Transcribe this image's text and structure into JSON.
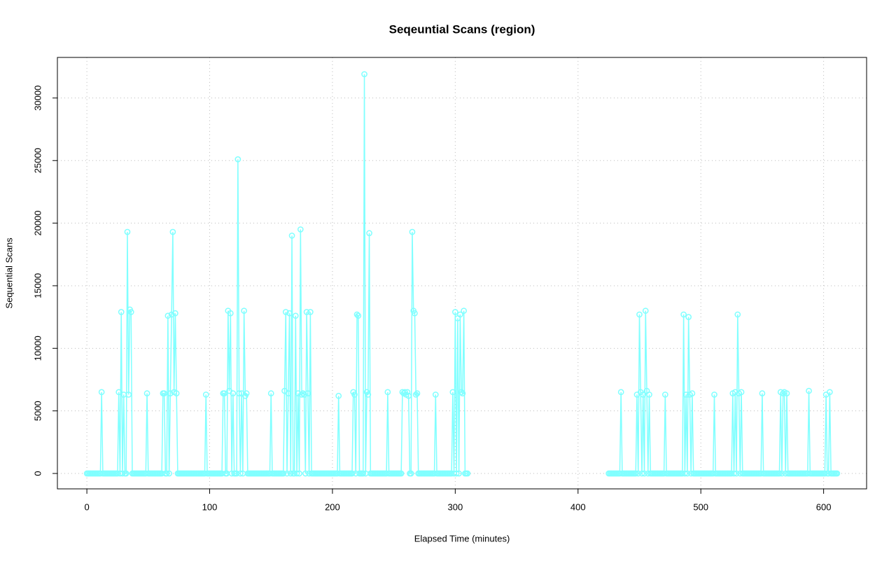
{
  "chart_data": {
    "type": "line",
    "markers": true,
    "title": "Seqeuntial Scans (region)",
    "x_label": "Elapsed Time (minutes)",
    "y_label": "Sequential Scans",
    "color": "#80ffff",
    "grid": true,
    "xlim": [
      -24,
      635
    ],
    "ylim": [
      -1230,
      33240
    ],
    "xticks": [
      0,
      100,
      200,
      300,
      400,
      500,
      600
    ],
    "yticks": [
      0,
      5000,
      10000,
      15000,
      20000,
      25000,
      30000
    ],
    "x": [
      0,
      1,
      2,
      3,
      4,
      5,
      6,
      7,
      8,
      9,
      10,
      11,
      12,
      13,
      14,
      15,
      16,
      17,
      18,
      19,
      20,
      21,
      22,
      23,
      24,
      25,
      26,
      27,
      28,
      29,
      30,
      31,
      32,
      33,
      34,
      35,
      36,
      37,
      38,
      39,
      40,
      41,
      42,
      43,
      44,
      45,
      46,
      47,
      48,
      49,
      50,
      51,
      52,
      53,
      54,
      55,
      56,
      57,
      58,
      59,
      60,
      61,
      62,
      63,
      64,
      65,
      66,
      67,
      68,
      69,
      70,
      71,
      72,
      73,
      74,
      75,
      76,
      77,
      78,
      79,
      80,
      81,
      82,
      83,
      84,
      85,
      86,
      87,
      88,
      89,
      90,
      91,
      92,
      93,
      94,
      95,
      96,
      97,
      98,
      99,
      100,
      101,
      102,
      103,
      104,
      105,
      106,
      107,
      108,
      109,
      110,
      111,
      112,
      113,
      114,
      115,
      116,
      117,
      118,
      119,
      120,
      121,
      122,
      123,
      124,
      125,
      126,
      127,
      128,
      129,
      130,
      131,
      132,
      133,
      134,
      135,
      136,
      137,
      138,
      139,
      140,
      141,
      142,
      143,
      144,
      145,
      146,
      147,
      148,
      149,
      150,
      151,
      152,
      153,
      154,
      155,
      156,
      157,
      158,
      159,
      160,
      161,
      162,
      163,
      164,
      165,
      166,
      167,
      168,
      169,
      170,
      171,
      172,
      173,
      174,
      175,
      176,
      177,
      178,
      179,
      180,
      181,
      182,
      183,
      184,
      185,
      186,
      187,
      188,
      189,
      190,
      191,
      192,
      193,
      194,
      195,
      196,
      197,
      198,
      199,
      200,
      201,
      202,
      203,
      204,
      205,
      206,
      207,
      208,
      209,
      210,
      211,
      212,
      213,
      214,
      215,
      216,
      217,
      218,
      219,
      220,
      221,
      222,
      223,
      224,
      225,
      226,
      227,
      228,
      229,
      230,
      231,
      232,
      233,
      234,
      235,
      236,
      237,
      238,
      239,
      240,
      241,
      242,
      243,
      244,
      245,
      246,
      247,
      248,
      249,
      250,
      251,
      252,
      253,
      254,
      255,
      256,
      257,
      258,
      259,
      260,
      261,
      262,
      263,
      264,
      265,
      266,
      267,
      268,
      269,
      270,
      271,
      272,
      273,
      274,
      275,
      276,
      277,
      278,
      279,
      280,
      281,
      282,
      283,
      284,
      285,
      286,
      287,
      288,
      289,
      290,
      291,
      292,
      293,
      294,
      295,
      296,
      297,
      298,
      299,
      300,
      301,
      302,
      303,
      304,
      305,
      306,
      307,
      308,
      309,
      310,
      368,
      425,
      426,
      427,
      428,
      429,
      430,
      431,
      432,
      433,
      434,
      435,
      436,
      437,
      438,
      439,
      440,
      441,
      442,
      443,
      444,
      445,
      446,
      447,
      448,
      449,
      450,
      451,
      452,
      453,
      454,
      455,
      456,
      457,
      458,
      459,
      460,
      461,
      462,
      463,
      464,
      465,
      466,
      467,
      468,
      469,
      470,
      471,
      472,
      473,
      474,
      475,
      476,
      477,
      478,
      479,
      480,
      481,
      482,
      483,
      484,
      485,
      486,
      487,
      488,
      489,
      490,
      491,
      492,
      493,
      494,
      495,
      496,
      497,
      498,
      499,
      500,
      501,
      502,
      503,
      504,
      505,
      506,
      507,
      508,
      509,
      510,
      511,
      512,
      513,
      514,
      515,
      516,
      517,
      518,
      519,
      520,
      521,
      522,
      523,
      524,
      525,
      526,
      527,
      528,
      529,
      530,
      531,
      532,
      533,
      534,
      535,
      536,
      537,
      538,
      539,
      540,
      541,
      542,
      543,
      544,
      545,
      546,
      547,
      548,
      549,
      550,
      551,
      552,
      553,
      554,
      555,
      556,
      557,
      558,
      559,
      560,
      561,
      562,
      563,
      564,
      565,
      566,
      567,
      568,
      569,
      570,
      571,
      572,
      573,
      574,
      575,
      576,
      577,
      578,
      579,
      580,
      581,
      582,
      583,
      584,
      585,
      586,
      587,
      588,
      589,
      590,
      591,
      592,
      593,
      594,
      595,
      596,
      597,
      598,
      599,
      600,
      601,
      602,
      603,
      604,
      605,
      606,
      607,
      608,
      609,
      610,
      611
    ],
    "values": [
      0,
      0,
      0,
      0,
      0,
      0,
      0,
      0,
      0,
      0,
      0,
      0,
      6500,
      0,
      0,
      0,
      0,
      0,
      0,
      0,
      0,
      0,
      0,
      0,
      0,
      0,
      6500,
      0,
      12900,
      0,
      6300,
      0,
      0,
      19300,
      6300,
      13100,
      12900,
      0,
      0,
      0,
      0,
      0,
      0,
      0,
      0,
      0,
      0,
      0,
      0,
      6400,
      0,
      0,
      0,
      0,
      0,
      0,
      0,
      0,
      0,
      0,
      0,
      0,
      6400,
      6400,
      0,
      0,
      12600,
      0,
      6400,
      12700,
      19300,
      6500,
      12800,
      6400,
      0,
      0,
      0,
      0,
      0,
      0,
      0,
      0,
      0,
      0,
      0,
      0,
      0,
      0,
      0,
      0,
      0,
      0,
      0,
      0,
      0,
      0,
      0,
      6300,
      0,
      0,
      0,
      0,
      0,
      0,
      0,
      0,
      0,
      0,
      0,
      0,
      0,
      6400,
      6400,
      0,
      0,
      13000,
      6600,
      12800,
      0,
      6400,
      0,
      0,
      0,
      25100,
      6400,
      0,
      6400,
      0,
      13000,
      6200,
      6400,
      0,
      0,
      0,
      0,
      0,
      0,
      0,
      0,
      0,
      0,
      0,
      0,
      0,
      0,
      0,
      0,
      0,
      0,
      0,
      6400,
      0,
      0,
      0,
      0,
      0,
      0,
      0,
      0,
      0,
      0,
      6600,
      12900,
      0,
      6400,
      12800,
      0,
      19000,
      0,
      0,
      12600,
      0,
      6400,
      0,
      19500,
      6300,
      6400,
      6300,
      0,
      12900,
      6400,
      0,
      12900,
      0,
      0,
      0,
      0,
      0,
      0,
      0,
      0,
      0,
      0,
      0,
      0,
      0,
      0,
      0,
      0,
      0,
      0,
      0,
      0,
      0,
      0,
      6200,
      0,
      0,
      0,
      0,
      0,
      0,
      0,
      0,
      0,
      0,
      0,
      6500,
      6300,
      0,
      12700,
      12600,
      0,
      0,
      0,
      0,
      31900,
      0,
      6500,
      6300,
      19200,
      0,
      0,
      0,
      0,
      0,
      0,
      0,
      0,
      0,
      0,
      0,
      0,
      0,
      0,
      6500,
      0,
      0,
      0,
      0,
      0,
      0,
      0,
      0,
      0,
      0,
      0,
      6500,
      6400,
      6500,
      6300,
      6500,
      6200,
      0,
      0,
      19300,
      13000,
      12800,
      6300,
      6400,
      0,
      0,
      0,
      0,
      0,
      0,
      0,
      0,
      0,
      0,
      0,
      0,
      0,
      0,
      6300,
      0,
      0,
      0,
      0,
      0,
      0,
      0,
      0,
      0,
      0,
      0,
      0,
      0,
      6500,
      0,
      12900,
      0,
      12400,
      0,
      12700,
      6500,
      6400,
      13000,
      0,
      0,
      0,
      null,
      0,
      0,
      0,
      0,
      0,
      0,
      0,
      0,
      0,
      0,
      6500,
      0,
      0,
      0,
      0,
      0,
      0,
      0,
      0,
      0,
      0,
      0,
      0,
      6300,
      0,
      12700,
      6500,
      0,
      6300,
      0,
      13000,
      6600,
      0,
      6300,
      0,
      0,
      0,
      0,
      0,
      0,
      0,
      0,
      0,
      0,
      0,
      0,
      6300,
      0,
      0,
      0,
      0,
      0,
      0,
      0,
      0,
      0,
      0,
      0,
      0,
      0,
      0,
      12700,
      0,
      6300,
      0,
      12500,
      6300,
      0,
      6400,
      0,
      0,
      0,
      0,
      0,
      0,
      0,
      0,
      0,
      0,
      0,
      0,
      0,
      0,
      0,
      0,
      0,
      6300,
      0,
      0,
      0,
      0,
      0,
      0,
      0,
      0,
      0,
      0,
      0,
      0,
      0,
      0,
      6400,
      0,
      6500,
      0,
      12700,
      6400,
      0,
      6500,
      0,
      0,
      0,
      0,
      0,
      0,
      0,
      0,
      0,
      0,
      0,
      0,
      0,
      0,
      0,
      0,
      6400,
      0,
      0,
      0,
      0,
      0,
      0,
      0,
      0,
      0,
      0,
      0,
      0,
      0,
      0,
      6500,
      0,
      6400,
      6500,
      0,
      6400,
      0,
      0,
      0,
      0,
      0,
      0,
      0,
      0,
      0,
      0,
      0,
      0,
      0,
      0,
      0,
      0,
      0,
      6600,
      0,
      0,
      0,
      0,
      0,
      0,
      0,
      0,
      0,
      0,
      0,
      0,
      0,
      6300,
      0,
      0,
      6500,
      0,
      0,
      0,
      0,
      0,
      0
    ]
  }
}
